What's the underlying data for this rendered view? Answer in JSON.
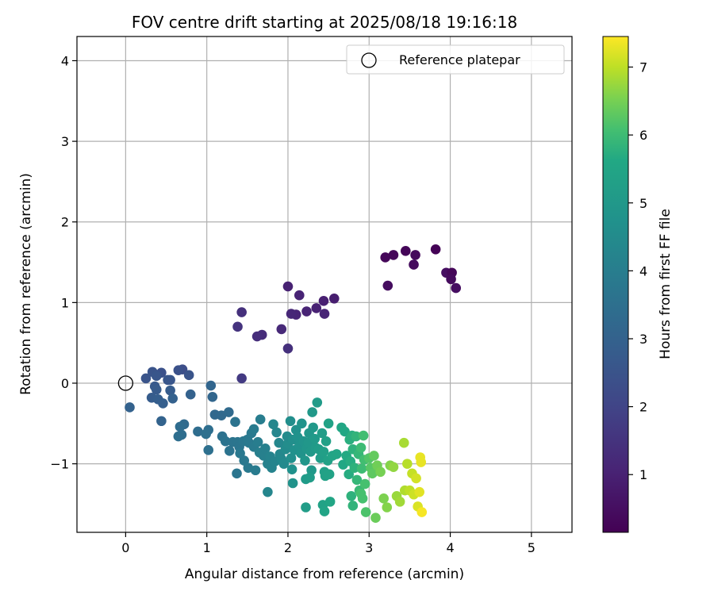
{
  "chart_data": {
    "type": "scatter",
    "title": "FOV centre drift starting at 2025/08/18 19:16:18",
    "xlabel": "Angular distance from reference (arcmin)",
    "ylabel": "Rotation from reference (arcmin)",
    "xlim": [
      -0.6,
      5.5
    ],
    "ylim": [
      -1.85,
      4.3
    ],
    "x_ticks": [
      0,
      1,
      2,
      3,
      4,
      5
    ],
    "x_tick_labels": [
      "0",
      "1",
      "2",
      "3",
      "4",
      "5"
    ],
    "y_ticks": [
      -1,
      0,
      1,
      2,
      3,
      4
    ],
    "y_tick_labels": [
      "−1",
      "0",
      "1",
      "2",
      "3",
      "4"
    ],
    "grid": true,
    "legend": {
      "position": "top-right",
      "label": "Reference platepar"
    },
    "reference_point": {
      "x": 0,
      "y": 0
    },
    "colorbar": {
      "label": "Hours from first FF file",
      "range": [
        0.15,
        7.45
      ],
      "ticks": [
        1,
        2,
        3,
        4,
        5,
        6,
        7
      ],
      "tick_labels": [
        "1",
        "2",
        "3",
        "4",
        "5",
        "6",
        "7"
      ],
      "colormap": "viridis"
    },
    "points": [
      {
        "x": 3.82,
        "y": 1.66,
        "t": 0.2
      },
      {
        "x": 3.45,
        "y": 1.64,
        "t": 0.25
      },
      {
        "x": 3.3,
        "y": 1.59,
        "t": 0.3
      },
      {
        "x": 3.2,
        "y": 1.56,
        "t": 0.3
      },
      {
        "x": 3.57,
        "y": 1.59,
        "t": 0.35
      },
      {
        "x": 3.55,
        "y": 1.47,
        "t": 0.4
      },
      {
        "x": 3.23,
        "y": 1.21,
        "t": 0.45
      },
      {
        "x": 3.95,
        "y": 1.37,
        "t": 0.5
      },
      {
        "x": 4.02,
        "y": 1.37,
        "t": 0.3
      },
      {
        "x": 4.01,
        "y": 1.29,
        "t": 0.4
      },
      {
        "x": 4.07,
        "y": 1.18,
        "t": 0.5
      },
      {
        "x": 2.57,
        "y": 1.05,
        "t": 0.9
      },
      {
        "x": 2.44,
        "y": 1.02,
        "t": 0.95
      },
      {
        "x": 2.35,
        "y": 0.93,
        "t": 1.0
      },
      {
        "x": 2.23,
        "y": 0.89,
        "t": 1.05
      },
      {
        "x": 2.45,
        "y": 0.86,
        "t": 1.1
      },
      {
        "x": 2.1,
        "y": 0.85,
        "t": 1.1
      },
      {
        "x": 2.04,
        "y": 0.86,
        "t": 1.15
      },
      {
        "x": 2.0,
        "y": 1.2,
        "t": 1.0
      },
      {
        "x": 2.14,
        "y": 1.09,
        "t": 1.05
      },
      {
        "x": 1.92,
        "y": 0.67,
        "t": 1.2
      },
      {
        "x": 1.68,
        "y": 0.6,
        "t": 1.3
      },
      {
        "x": 1.62,
        "y": 0.58,
        "t": 1.35
      },
      {
        "x": 1.43,
        "y": 0.88,
        "t": 1.4
      },
      {
        "x": 1.38,
        "y": 0.7,
        "t": 1.5
      },
      {
        "x": 2.0,
        "y": 0.43,
        "t": 1.4
      },
      {
        "x": 1.43,
        "y": 0.06,
        "t": 1.7
      },
      {
        "x": 0.7,
        "y": 0.17,
        "t": 2.3
      },
      {
        "x": 0.65,
        "y": 0.16,
        "t": 2.4
      },
      {
        "x": 0.78,
        "y": 0.1,
        "t": 2.5
      },
      {
        "x": 0.44,
        "y": 0.13,
        "t": 2.4
      },
      {
        "x": 0.33,
        "y": 0.14,
        "t": 2.5
      },
      {
        "x": 0.38,
        "y": 0.09,
        "t": 2.6
      },
      {
        "x": 0.25,
        "y": 0.06,
        "t": 2.5
      },
      {
        "x": 0.52,
        "y": 0.04,
        "t": 2.6
      },
      {
        "x": 0.55,
        "y": 0.04,
        "t": 2.6
      },
      {
        "x": 0.36,
        "y": -0.04,
        "t": 2.7
      },
      {
        "x": 0.38,
        "y": -0.08,
        "t": 2.75
      },
      {
        "x": 0.55,
        "y": -0.09,
        "t": 2.8
      },
      {
        "x": 0.32,
        "y": -0.18,
        "t": 2.8
      },
      {
        "x": 0.4,
        "y": -0.2,
        "t": 2.85
      },
      {
        "x": 0.46,
        "y": -0.25,
        "t": 2.9
      },
      {
        "x": 0.58,
        "y": -0.19,
        "t": 2.95
      },
      {
        "x": 0.05,
        "y": -0.3,
        "t": 3.0
      },
      {
        "x": 0.8,
        "y": -0.14,
        "t": 3.0
      },
      {
        "x": 0.44,
        "y": -0.47,
        "t": 3.05
      },
      {
        "x": 1.05,
        "y": -0.03,
        "t": 3.1
      },
      {
        "x": 1.07,
        "y": -0.17,
        "t": 3.15
      },
      {
        "x": 1.1,
        "y": -0.39,
        "t": 3.2
      },
      {
        "x": 1.18,
        "y": -0.4,
        "t": 3.25
      },
      {
        "x": 1.27,
        "y": -0.36,
        "t": 3.3
      },
      {
        "x": 0.72,
        "y": -0.51,
        "t": 3.3
      },
      {
        "x": 0.67,
        "y": -0.54,
        "t": 3.35
      },
      {
        "x": 0.69,
        "y": -0.64,
        "t": 3.4
      },
      {
        "x": 0.65,
        "y": -0.66,
        "t": 3.45
      },
      {
        "x": 0.89,
        "y": -0.6,
        "t": 3.4
      },
      {
        "x": 1.02,
        "y": -0.58,
        "t": 3.45
      },
      {
        "x": 0.99,
        "y": -0.63,
        "t": 3.5
      },
      {
        "x": 1.02,
        "y": -0.83,
        "t": 3.5
      },
      {
        "x": 1.19,
        "y": -0.66,
        "t": 3.55
      },
      {
        "x": 1.23,
        "y": -0.72,
        "t": 3.6
      },
      {
        "x": 1.28,
        "y": -0.84,
        "t": 3.6
      },
      {
        "x": 1.35,
        "y": -0.48,
        "t": 3.6
      },
      {
        "x": 1.32,
        "y": -0.73,
        "t": 3.65
      },
      {
        "x": 1.38,
        "y": -0.73,
        "t": 3.7
      },
      {
        "x": 1.4,
        "y": -0.79,
        "t": 3.7
      },
      {
        "x": 1.45,
        "y": -0.72,
        "t": 3.75
      },
      {
        "x": 1.5,
        "y": -0.7,
        "t": 3.8
      },
      {
        "x": 1.55,
        "y": -0.62,
        "t": 3.85
      },
      {
        "x": 1.52,
        "y": -0.74,
        "t": 3.85
      },
      {
        "x": 1.41,
        "y": -0.87,
        "t": 3.8
      },
      {
        "x": 1.58,
        "y": -0.79,
        "t": 3.9
      },
      {
        "x": 1.37,
        "y": -1.12,
        "t": 3.7
      },
      {
        "x": 1.46,
        "y": -0.96,
        "t": 3.8
      },
      {
        "x": 1.51,
        "y": -1.05,
        "t": 3.85
      },
      {
        "x": 1.6,
        "y": -1.08,
        "t": 3.9
      },
      {
        "x": 1.58,
        "y": -0.57,
        "t": 3.9
      },
      {
        "x": 1.66,
        "y": -0.45,
        "t": 4.0
      },
      {
        "x": 1.63,
        "y": -0.73,
        "t": 4.0
      },
      {
        "x": 1.65,
        "y": -0.86,
        "t": 4.05
      },
      {
        "x": 1.7,
        "y": -0.9,
        "t": 4.1
      },
      {
        "x": 1.72,
        "y": -0.81,
        "t": 4.1
      },
      {
        "x": 1.75,
        "y": -1.0,
        "t": 4.15
      },
      {
        "x": 1.8,
        "y": -1.05,
        "t": 4.2
      },
      {
        "x": 1.78,
        "y": -0.91,
        "t": 4.2
      },
      {
        "x": 1.84,
        "y": -0.97,
        "t": 4.25
      },
      {
        "x": 1.86,
        "y": -0.61,
        "t": 4.3
      },
      {
        "x": 1.82,
        "y": -0.51,
        "t": 4.3
      },
      {
        "x": 1.89,
        "y": -0.74,
        "t": 4.35
      },
      {
        "x": 1.9,
        "y": -0.88,
        "t": 4.35
      },
      {
        "x": 1.92,
        "y": -0.94,
        "t": 4.4
      },
      {
        "x": 1.75,
        "y": -1.35,
        "t": 4.3
      },
      {
        "x": 1.95,
        "y": -1.0,
        "t": 4.45
      },
      {
        "x": 1.97,
        "y": -0.82,
        "t": 4.5
      },
      {
        "x": 2.0,
        "y": -0.75,
        "t": 4.55
      },
      {
        "x": 1.99,
        "y": -0.66,
        "t": 4.5
      },
      {
        "x": 2.03,
        "y": -0.47,
        "t": 4.6
      },
      {
        "x": 2.06,
        "y": -0.7,
        "t": 4.65
      },
      {
        "x": 2.04,
        "y": -0.93,
        "t": 4.65
      },
      {
        "x": 2.08,
        "y": -0.83,
        "t": 4.7
      },
      {
        "x": 2.1,
        "y": -0.58,
        "t": 4.7
      },
      {
        "x": 2.12,
        "y": -0.67,
        "t": 4.75
      },
      {
        "x": 2.14,
        "y": -0.78,
        "t": 4.75
      },
      {
        "x": 2.16,
        "y": -0.87,
        "t": 4.8
      },
      {
        "x": 2.17,
        "y": -0.5,
        "t": 4.8
      },
      {
        "x": 2.19,
        "y": -0.72,
        "t": 4.85
      },
      {
        "x": 2.05,
        "y": -1.07,
        "t": 4.7
      },
      {
        "x": 2.06,
        "y": -1.24,
        "t": 4.8
      },
      {
        "x": 2.21,
        "y": -0.96,
        "t": 4.9
      },
      {
        "x": 2.23,
        "y": -0.81,
        "t": 4.9
      },
      {
        "x": 2.25,
        "y": -0.74,
        "t": 4.95
      },
      {
        "x": 2.26,
        "y": -0.62,
        "t": 4.95
      },
      {
        "x": 2.28,
        "y": -0.85,
        "t": 5.0
      },
      {
        "x": 2.3,
        "y": -0.36,
        "t": 5.0
      },
      {
        "x": 2.31,
        "y": -0.55,
        "t": 5.0
      },
      {
        "x": 2.33,
        "y": -0.69,
        "t": 5.05
      },
      {
        "x": 2.34,
        "y": -0.8,
        "t": 5.05
      },
      {
        "x": 2.36,
        "y": -0.24,
        "t": 5.1
      },
      {
        "x": 2.29,
        "y": -1.08,
        "t": 5.0
      },
      {
        "x": 2.22,
        "y": -1.19,
        "t": 5.1
      },
      {
        "x": 2.22,
        "y": -1.54,
        "t": 5.2
      },
      {
        "x": 2.27,
        "y": -1.17,
        "t": 5.15
      },
      {
        "x": 2.38,
        "y": -0.82,
        "t": 5.15
      },
      {
        "x": 2.4,
        "y": -0.93,
        "t": 5.2
      },
      {
        "x": 2.42,
        "y": -0.62,
        "t": 5.2
      },
      {
        "x": 2.44,
        "y": -0.85,
        "t": 5.25
      },
      {
        "x": 2.45,
        "y": -1.1,
        "t": 5.3
      },
      {
        "x": 2.46,
        "y": -1.15,
        "t": 5.35
      },
      {
        "x": 2.47,
        "y": -0.72,
        "t": 5.3
      },
      {
        "x": 2.49,
        "y": -0.96,
        "t": 5.35
      },
      {
        "x": 2.51,
        "y": -1.13,
        "t": 5.4
      },
      {
        "x": 2.5,
        "y": -0.5,
        "t": 5.4
      },
      {
        "x": 2.43,
        "y": -1.51,
        "t": 5.4
      },
      {
        "x": 2.45,
        "y": -1.59,
        "t": 5.45
      },
      {
        "x": 2.52,
        "y": -1.47,
        "t": 5.5
      },
      {
        "x": 2.55,
        "y": -0.9,
        "t": 5.45
      },
      {
        "x": 2.6,
        "y": -0.88,
        "t": 5.5
      },
      {
        "x": 2.66,
        "y": -0.55,
        "t": 5.55
      },
      {
        "x": 2.7,
        "y": -0.6,
        "t": 5.6
      },
      {
        "x": 2.68,
        "y": -1.01,
        "t": 5.6
      },
      {
        "x": 2.72,
        "y": -0.9,
        "t": 5.65
      },
      {
        "x": 2.75,
        "y": -1.13,
        "t": 5.7
      },
      {
        "x": 2.77,
        "y": -0.97,
        "t": 5.7
      },
      {
        "x": 2.76,
        "y": -0.7,
        "t": 5.75
      },
      {
        "x": 2.79,
        "y": -0.65,
        "t": 5.75
      },
      {
        "x": 2.8,
        "y": -0.82,
        "t": 5.8
      },
      {
        "x": 2.82,
        "y": -1.05,
        "t": 5.8
      },
      {
        "x": 2.78,
        "y": -1.4,
        "t": 5.8
      },
      {
        "x": 2.8,
        "y": -1.52,
        "t": 5.85
      },
      {
        "x": 2.84,
        "y": -0.66,
        "t": 5.85
      },
      {
        "x": 2.85,
        "y": -1.2,
        "t": 5.9
      },
      {
        "x": 2.87,
        "y": -0.88,
        "t": 5.9
      },
      {
        "x": 2.88,
        "y": -1.33,
        "t": 5.95
      },
      {
        "x": 2.9,
        "y": -0.8,
        "t": 6.0
      },
      {
        "x": 2.91,
        "y": -1.06,
        "t": 6.0
      },
      {
        "x": 2.93,
        "y": -0.65,
        "t": 6.05
      },
      {
        "x": 2.94,
        "y": -0.95,
        "t": 6.05
      },
      {
        "x": 2.95,
        "y": -1.25,
        "t": 6.1
      },
      {
        "x": 2.96,
        "y": -1.6,
        "t": 6.15
      },
      {
        "x": 2.92,
        "y": -1.43,
        "t": 6.1
      },
      {
        "x": 2.9,
        "y": -1.37,
        "t": 6.1
      },
      {
        "x": 3.0,
        "y": -0.93,
        "t": 6.2
      },
      {
        "x": 3.02,
        "y": -1.05,
        "t": 6.25
      },
      {
        "x": 3.04,
        "y": -1.12,
        "t": 6.3
      },
      {
        "x": 3.06,
        "y": -0.9,
        "t": 6.35
      },
      {
        "x": 3.08,
        "y": -1.67,
        "t": 6.4
      },
      {
        "x": 3.1,
        "y": -1.02,
        "t": 6.45
      },
      {
        "x": 3.14,
        "y": -1.1,
        "t": 6.5
      },
      {
        "x": 3.18,
        "y": -1.43,
        "t": 6.55
      },
      {
        "x": 3.22,
        "y": -1.54,
        "t": 6.6
      },
      {
        "x": 3.26,
        "y": -1.02,
        "t": 6.6
      },
      {
        "x": 3.3,
        "y": -1.04,
        "t": 6.7
      },
      {
        "x": 3.34,
        "y": -1.4,
        "t": 6.75
      },
      {
        "x": 3.38,
        "y": -1.47,
        "t": 6.8
      },
      {
        "x": 3.43,
        "y": -0.74,
        "t": 6.85
      },
      {
        "x": 3.44,
        "y": -1.33,
        "t": 6.9
      },
      {
        "x": 3.47,
        "y": -1.0,
        "t": 6.95
      },
      {
        "x": 3.5,
        "y": -1.33,
        "t": 7.0
      },
      {
        "x": 3.53,
        "y": -1.12,
        "t": 7.05
      },
      {
        "x": 3.55,
        "y": -1.38,
        "t": 7.1
      },
      {
        "x": 3.58,
        "y": -1.18,
        "t": 7.15
      },
      {
        "x": 3.6,
        "y": -1.53,
        "t": 7.2
      },
      {
        "x": 3.62,
        "y": -1.35,
        "t": 7.25
      },
      {
        "x": 3.63,
        "y": -0.92,
        "t": 7.3
      },
      {
        "x": 3.64,
        "y": -0.98,
        "t": 7.3
      },
      {
        "x": 3.65,
        "y": -1.6,
        "t": 7.4
      }
    ]
  }
}
